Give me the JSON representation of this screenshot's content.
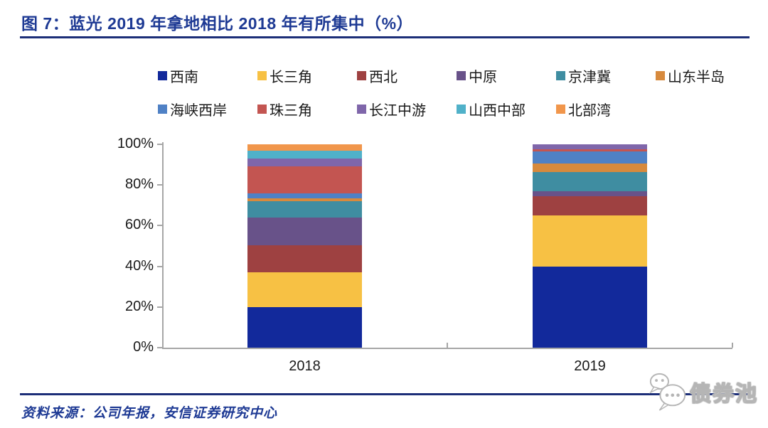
{
  "title": {
    "label": "图 7：蓝光 2019 年拿地相比 2018 年有所集中（%）"
  },
  "footer": {
    "source": "资料来源：公司年报，安信证券研究中心"
  },
  "watermark": {
    "label": "债券池",
    "icon": "wechat-chat-bubbles-icon"
  },
  "colors": {
    "title_navy": "#1E3A94",
    "rule_navy": "#1C2E78",
    "axis_gray": "#A6A6A6",
    "legend_text": "#1a1a1a"
  },
  "chart_data": {
    "type": "bar",
    "stacked": true,
    "title": "",
    "xlabel": "",
    "ylabel": "",
    "categories": [
      "2018",
      "2019"
    ],
    "series": [
      {
        "name": "西南",
        "color": "#12299B",
        "values": [
          20,
          40
        ]
      },
      {
        "name": "长三角",
        "color": "#F7C144",
        "values": [
          17,
          25
        ]
      },
      {
        "name": "西北",
        "color": "#9E4141",
        "values": [
          13.5,
          9.5
        ]
      },
      {
        "name": "中原",
        "color": "#685289",
        "values": [
          13.5,
          2.5
        ]
      },
      {
        "name": "京津冀",
        "color": "#3F8DA1",
        "values": [
          8,
          9.5
        ]
      },
      {
        "name": "山东半岛",
        "color": "#D78A3D",
        "values": [
          1.5,
          4
        ]
      },
      {
        "name": "海峡西岸",
        "color": "#4F81C5",
        "values": [
          2.5,
          6
        ]
      },
      {
        "name": "珠三角",
        "color": "#C35551",
        "values": [
          13,
          1
        ]
      },
      {
        "name": "长江中游",
        "color": "#7F66AA",
        "values": [
          4,
          2.5
        ]
      },
      {
        "name": "山西中部",
        "color": "#50B1C9",
        "values": [
          4,
          0
        ]
      },
      {
        "name": "北部湾",
        "color": "#F1964B",
        "values": [
          3,
          0
        ]
      }
    ],
    "ylim": [
      0,
      100
    ],
    "yticks": [
      "0%",
      "20%",
      "40%",
      "60%",
      "80%",
      "100%"
    ],
    "grid": false,
    "legend_position": "top",
    "legend_rows": [
      6,
      5
    ]
  }
}
